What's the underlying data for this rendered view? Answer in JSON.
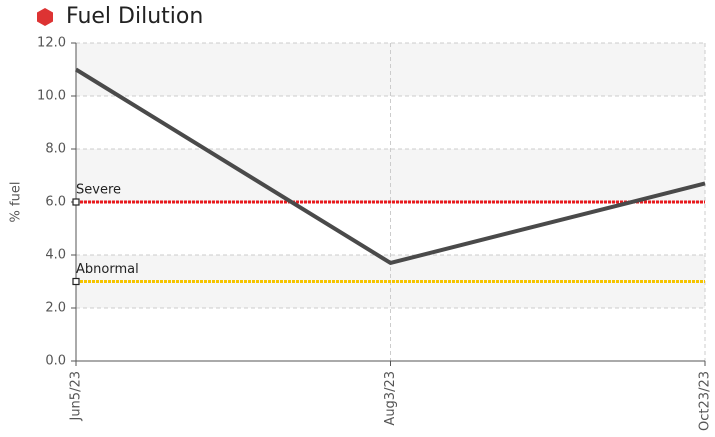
{
  "chart_data": {
    "type": "line",
    "title": "Fuel Dilution",
    "y_label": "% fuel",
    "categories": [
      "Jun5/23",
      "Aug3/23",
      "Oct23/23"
    ],
    "series": [
      {
        "name": "Fuel Dilution",
        "color": "#4a4a4a",
        "values": [
          11.0,
          3.7,
          6.7
        ]
      }
    ],
    "ylim": [
      0,
      12
    ],
    "yticks": [
      {
        "value": 0,
        "label": "0.0"
      },
      {
        "value": 2,
        "label": "2.0"
      },
      {
        "value": 4,
        "label": "4.0"
      },
      {
        "value": 6,
        "label": "6.0"
      },
      {
        "value": 8,
        "label": "8.0"
      },
      {
        "value": 10,
        "label": "10.0"
      },
      {
        "value": 12,
        "label": "12.0"
      }
    ],
    "grid": true,
    "thresholds": [
      {
        "label": "Severe",
        "value": 6,
        "color": "#e8191d"
      },
      {
        "label": "Abnormal",
        "value": 3,
        "color": "#f5c400"
      }
    ]
  }
}
